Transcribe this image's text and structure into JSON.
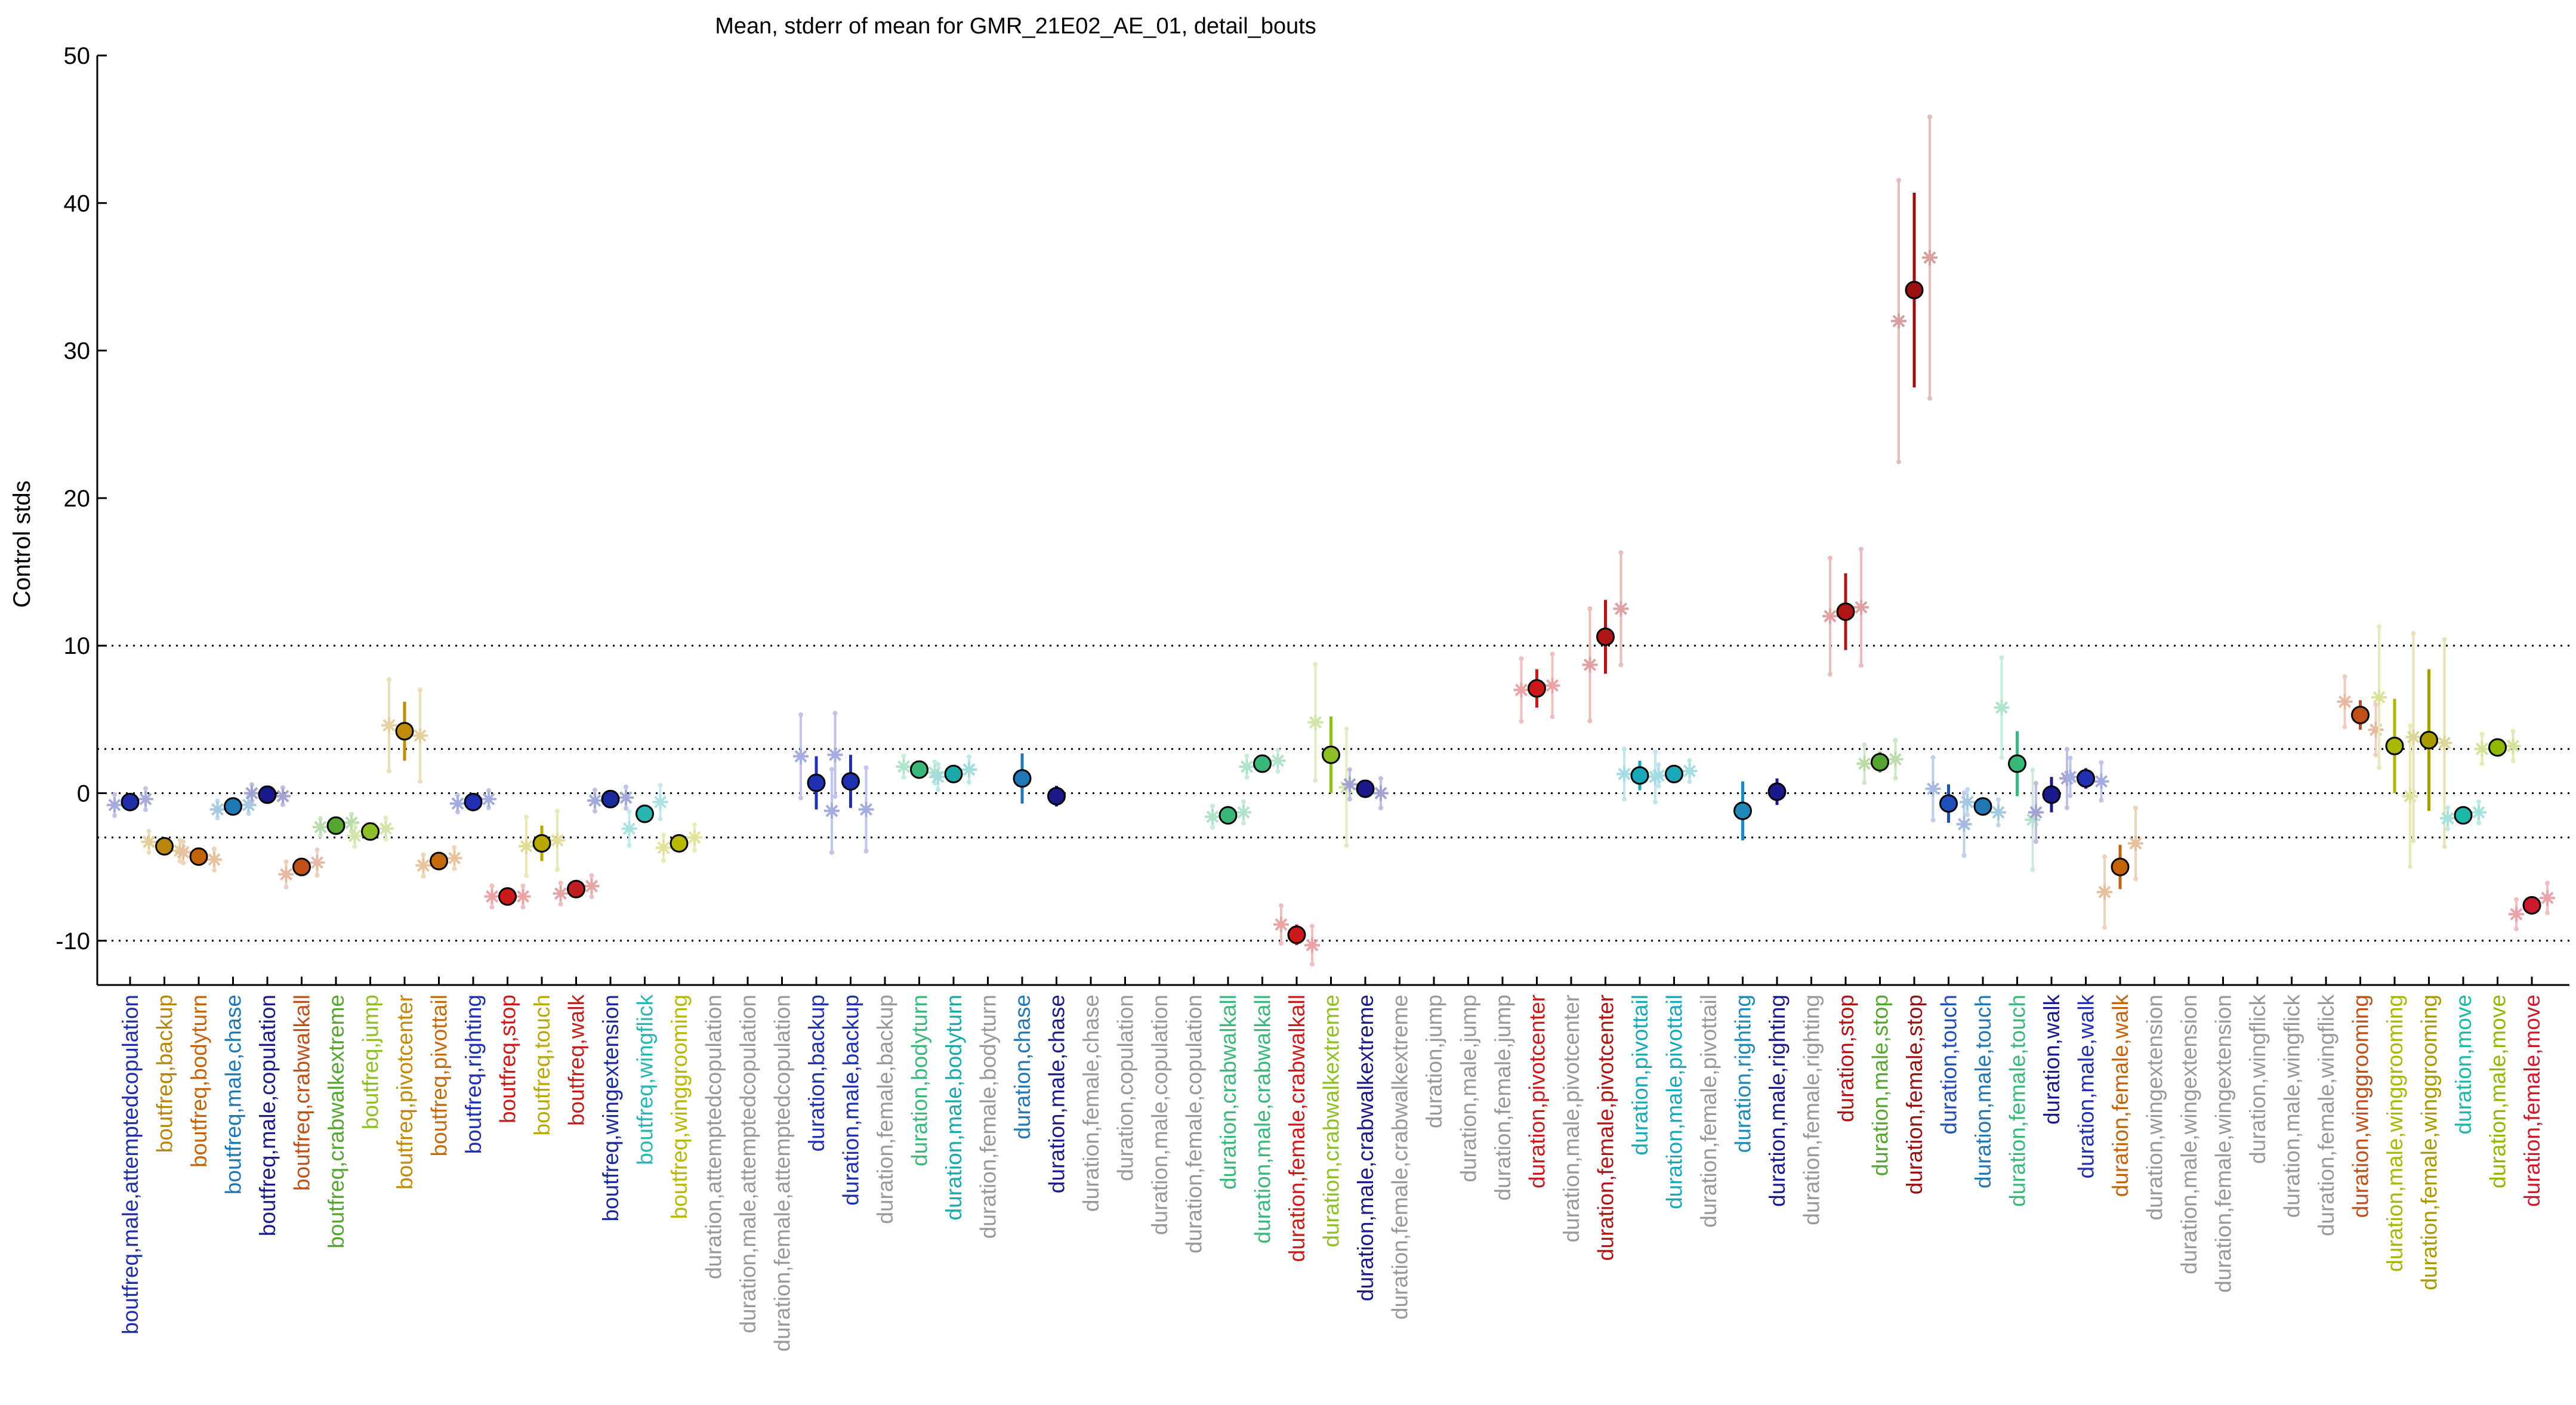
{
  "chart_data": {
    "type": "scatter",
    "title": "Mean, stderr of mean for GMR_21E02_AE_01, detail_bouts",
    "xlabel": "",
    "ylabel": "Control stds",
    "ylim": [
      -13,
      50
    ],
    "yticks": [
      -10,
      0,
      10,
      20,
      30,
      40,
      50
    ],
    "reference_lines": [
      -10,
      -3,
      0,
      3,
      10
    ],
    "grid": false,
    "legend": "none",
    "categories": [
      {
        "label": "boutfreq,male,attemptedcopulation",
        "color": "#1f2fa8",
        "mean": -0.6,
        "sem": 0.3,
        "replicates": [
          -0.8,
          -0.4
        ]
      },
      {
        "label": "boutfreq,backup",
        "color": "#b8860b",
        "mean": -3.6,
        "sem": 0.3,
        "replicates": [
          -3.3,
          -3.9
        ]
      },
      {
        "label": "boutfreq,bodyturn",
        "color": "#c2630a",
        "mean": -4.3,
        "sem": 0.3,
        "replicates": [
          -4.0,
          -4.5
        ]
      },
      {
        "label": "boutfreq,male,chase",
        "color": "#1f77b4",
        "mean": -0.9,
        "sem": 0.2,
        "replicates": [
          -1.1,
          -0.8
        ]
      },
      {
        "label": "boutfreq,male,copulation",
        "color": "#1a1a8c",
        "mean": -0.1,
        "sem": 0.2,
        "replicates": [
          0.0,
          -0.2
        ]
      },
      {
        "label": "boutfreq,crabwalkall",
        "color": "#c0501a",
        "mean": -5.0,
        "sem": 0.4,
        "replicates": [
          -5.5,
          -4.7
        ]
      },
      {
        "label": "boutfreq,crabwalkextreme",
        "color": "#55a630",
        "mean": -2.2,
        "sem": 0.2,
        "replicates": [
          -2.3,
          -2.0
        ]
      },
      {
        "label": "boutfreq,jump",
        "color": "#8fbf26",
        "mean": -2.6,
        "sem": 0.3,
        "replicates": [
          -2.9,
          -2.4
        ]
      },
      {
        "label": "boutfreq,pivotcenter",
        "color": "#c08a0a",
        "mean": 4.2,
        "sem": 2.0,
        "replicates": [
          4.6,
          3.9
        ]
      },
      {
        "label": "boutfreq,pivottail",
        "color": "#c46a0c",
        "mean": -4.6,
        "sem": 0.3,
        "replicates": [
          -4.9,
          -4.4
        ]
      },
      {
        "label": "boutfreq,righting",
        "color": "#1f30b0",
        "mean": -0.6,
        "sem": 0.2,
        "replicates": [
          -0.7,
          -0.4
        ]
      },
      {
        "label": "boutfreq,stop",
        "color": "#cc1a1a",
        "mean": -7.0,
        "sem": 0.3,
        "replicates": [
          -7.0,
          -7.0
        ]
      },
      {
        "label": "boutfreq,touch",
        "color": "#b8a800",
        "mean": -3.4,
        "sem": 1.2,
        "replicates": [
          -3.6,
          -3.2
        ]
      },
      {
        "label": "boutfreq,walk",
        "color": "#c01f1f",
        "mean": -6.5,
        "sem": 0.3,
        "replicates": [
          -6.8,
          -6.3
        ]
      },
      {
        "label": "boutfreq,wingextension",
        "color": "#1a2a9a",
        "mean": -0.4,
        "sem": 0.3,
        "replicates": [
          -0.5,
          -0.3
        ]
      },
      {
        "label": "boutfreq,wingflick",
        "color": "#2ab5b5",
        "mean": -1.4,
        "sem": 0.6,
        "replicates": [
          -2.4,
          -0.6
        ]
      },
      {
        "label": "boutfreq,winggrooming",
        "color": "#b8b800",
        "mean": -3.4,
        "sem": 0.4,
        "replicates": [
          -3.7,
          -3.0
        ]
      },
      {
        "label": "duration,attemptedcopulation",
        "color": "#999999",
        "mean": null,
        "sem": null,
        "replicates": []
      },
      {
        "label": "duration,male,attemptedcopulation",
        "color": "#999999",
        "mean": null,
        "sem": null,
        "replicates": []
      },
      {
        "label": "duration,female,attemptedcopulation",
        "color": "#999999",
        "mean": null,
        "sem": null,
        "replicates": []
      },
      {
        "label": "duration,backup",
        "color": "#1f30b0",
        "mean": 0.7,
        "sem": 1.8,
        "replicates": [
          2.5,
          -1.2
        ]
      },
      {
        "label": "duration,male,backup",
        "color": "#1f30b0",
        "mean": 0.8,
        "sem": 1.8,
        "replicates": [
          2.6,
          -1.1
        ]
      },
      {
        "label": "duration,female,backup",
        "color": "#999999",
        "mean": null,
        "sem": null,
        "replicates": []
      },
      {
        "label": "duration,bodyturn",
        "color": "#3ab87a",
        "mean": 1.6,
        "sem": 0.3,
        "replicates": [
          1.8,
          1.4
        ]
      },
      {
        "label": "duration,male,bodyturn",
        "color": "#1aa8a8",
        "mean": 1.3,
        "sem": 0.4,
        "replicates": [
          1.1,
          1.6
        ]
      },
      {
        "label": "duration,female,bodyturn",
        "color": "#999999",
        "mean": null,
        "sem": null,
        "replicates": []
      },
      {
        "label": "duration,chase",
        "color": "#1f77b4",
        "mean": 1.0,
        "sem": 1.7,
        "replicates": []
      },
      {
        "label": "duration,male,chase",
        "color": "#1a1a8c",
        "mean": -0.2,
        "sem": 0.7,
        "replicates": []
      },
      {
        "label": "duration,female,chase",
        "color": "#999999",
        "mean": null,
        "sem": null,
        "replicates": []
      },
      {
        "label": "duration,copulation",
        "color": "#999999",
        "mean": null,
        "sem": null,
        "replicates": []
      },
      {
        "label": "duration,male,copulation",
        "color": "#999999",
        "mean": null,
        "sem": null,
        "replicates": []
      },
      {
        "label": "duration,female,copulation",
        "color": "#999999",
        "mean": null,
        "sem": null,
        "replicates": []
      },
      {
        "label": "duration,crabwalkall",
        "color": "#3ab87a",
        "mean": -1.5,
        "sem": 0.3,
        "replicates": [
          -1.6,
          -1.3
        ]
      },
      {
        "label": "duration,male,crabwalkall",
        "color": "#3ab87a",
        "mean": 2.0,
        "sem": 0.3,
        "replicates": [
          1.8,
          2.2
        ]
      },
      {
        "label": "duration,female,crabwalkall",
        "color": "#cc1a1a",
        "mean": -9.6,
        "sem": 0.7,
        "replicates": [
          -8.9,
          -10.3
        ]
      },
      {
        "label": "duration,crabwalkextreme",
        "color": "#8fbf26",
        "mean": 2.6,
        "sem": 2.6,
        "replicates": [
          4.8,
          0.4
        ]
      },
      {
        "label": "duration,male,crabwalkextreme",
        "color": "#1a1a8c",
        "mean": 0.3,
        "sem": 0.5,
        "replicates": [
          0.6,
          0.0
        ]
      },
      {
        "label": "duration,female,crabwalkextreme",
        "color": "#999999",
        "mean": null,
        "sem": null,
        "replicates": []
      },
      {
        "label": "duration,jump",
        "color": "#999999",
        "mean": null,
        "sem": null,
        "replicates": []
      },
      {
        "label": "duration,male,jump",
        "color": "#999999",
        "mean": null,
        "sem": null,
        "replicates": []
      },
      {
        "label": "duration,female,jump",
        "color": "#999999",
        "mean": null,
        "sem": null,
        "replicates": []
      },
      {
        "label": "duration,pivotcenter",
        "color": "#cc1a1a",
        "mean": 7.1,
        "sem": 1.3,
        "replicates": [
          7.0,
          7.3
        ]
      },
      {
        "label": "duration,male,pivotcenter",
        "color": "#999999",
        "mean": null,
        "sem": null,
        "replicates": []
      },
      {
        "label": "duration,female,pivotcenter",
        "color": "#b01515",
        "mean": 10.6,
        "sem": 2.5,
        "replicates": [
          8.7,
          12.5
        ]
      },
      {
        "label": "duration,pivottail",
        "color": "#1aa8b8",
        "mean": 1.2,
        "sem": 1.0,
        "replicates": [
          1.3,
          1.1
        ]
      },
      {
        "label": "duration,male,pivottail",
        "color": "#1aa8b8",
        "mean": 1.3,
        "sem": 0.3,
        "replicates": [
          1.2,
          1.5
        ]
      },
      {
        "label": "duration,female,pivottail",
        "color": "#999999",
        "mean": null,
        "sem": null,
        "replicates": []
      },
      {
        "label": "duration,righting",
        "color": "#1f8ab8",
        "mean": -1.2,
        "sem": 2.0,
        "replicates": []
      },
      {
        "label": "duration,male,righting",
        "color": "#1a1a8c",
        "mean": 0.1,
        "sem": 0.9,
        "replicates": []
      },
      {
        "label": "duration,female,righting",
        "color": "#999999",
        "mean": null,
        "sem": null,
        "replicates": []
      },
      {
        "label": "duration,stop",
        "color": "#b01515",
        "mean": 12.3,
        "sem": 2.6,
        "replicates": [
          12.0,
          12.6
        ]
      },
      {
        "label": "duration,male,stop",
        "color": "#55a630",
        "mean": 2.1,
        "sem": 0.7,
        "replicates": [
          2.0,
          2.3
        ]
      },
      {
        "label": "duration,female,stop",
        "color": "#9a0f0f",
        "mean": 34.1,
        "sem": 6.6,
        "replicates": [
          32.0,
          36.3
        ]
      },
      {
        "label": "duration,touch",
        "color": "#1f4fb8",
        "mean": -0.7,
        "sem": 1.3,
        "replicates": [
          0.3,
          -2.1
        ]
      },
      {
        "label": "duration,male,touch",
        "color": "#1f77b4",
        "mean": -0.9,
        "sem": 0.4,
        "replicates": [
          -0.6,
          -1.3
        ]
      },
      {
        "label": "duration,female,touch",
        "color": "#3ab87a",
        "mean": 2.0,
        "sem": 2.2,
        "replicates": [
          5.8,
          -1.8
        ]
      },
      {
        "label": "duration,walk",
        "color": "#1a1a8c",
        "mean": -0.1,
        "sem": 1.2,
        "replicates": [
          -1.3,
          1.0
        ]
      },
      {
        "label": "duration,male,walk",
        "color": "#1f30b0",
        "mean": 1.0,
        "sem": 0.7,
        "replicates": [
          1.1,
          0.8
        ]
      },
      {
        "label": "duration,female,walk",
        "color": "#c2630a",
        "mean": -5.0,
        "sem": 1.5,
        "replicates": [
          -6.7,
          -3.4
        ]
      },
      {
        "label": "duration,wingextension",
        "color": "#999999",
        "mean": null,
        "sem": null,
        "replicates": []
      },
      {
        "label": "duration,male,wingextension",
        "color": "#999999",
        "mean": null,
        "sem": null,
        "replicates": []
      },
      {
        "label": "duration,female,wingextension",
        "color": "#999999",
        "mean": null,
        "sem": null,
        "replicates": []
      },
      {
        "label": "duration,wingflick",
        "color": "#999999",
        "mean": null,
        "sem": null,
        "replicates": []
      },
      {
        "label": "duration,male,wingflick",
        "color": "#999999",
        "mean": null,
        "sem": null,
        "replicates": []
      },
      {
        "label": "duration,female,wingflick",
        "color": "#999999",
        "mean": null,
        "sem": null,
        "replicates": []
      },
      {
        "label": "duration,winggrooming",
        "color": "#c0501a",
        "mean": 5.3,
        "sem": 1.0,
        "replicates": [
          6.2,
          4.3
        ]
      },
      {
        "label": "duration,male,winggrooming",
        "color": "#a8b800",
        "mean": 3.2,
        "sem": 3.2,
        "replicates": [
          6.5,
          -0.2
        ]
      },
      {
        "label": "duration,female,winggrooming",
        "color": "#a89a00",
        "mean": 3.6,
        "sem": 4.8,
        "replicates": [
          3.8,
          3.4
        ]
      },
      {
        "label": "duration,move",
        "color": "#1ab8a8",
        "mean": -1.5,
        "sem": 0.3,
        "replicates": [
          -1.7,
          -1.3
        ]
      },
      {
        "label": "duration,male,move",
        "color": "#8fb800",
        "mean": 3.1,
        "sem": 0.5,
        "replicates": [
          3.0,
          3.2
        ]
      },
      {
        "label": "duration,female,move",
        "color": "#cc1a2a",
        "mean": -7.6,
        "sem": 0.5,
        "replicates": [
          -8.2,
          -7.1
        ]
      }
    ]
  }
}
